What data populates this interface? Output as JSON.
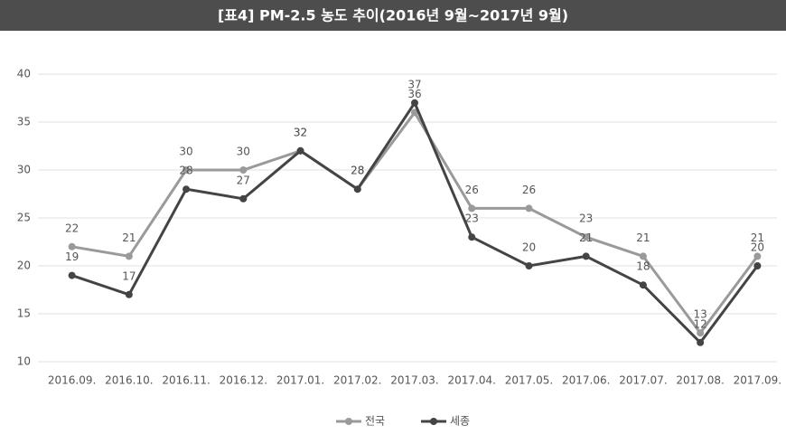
{
  "chart_data": {
    "type": "line",
    "title": "[표4] PM-2.5 농도 추이(2016년 9월~2017년 9월)",
    "categories": [
      "2016.09.",
      "2016.10.",
      "2016.11.",
      "2016.12.",
      "2017.01.",
      "2017.02.",
      "2017.03.",
      "2017.04.",
      "2017.05.",
      "2017.06.",
      "2017.07.",
      "2017.08.",
      "2017.09."
    ],
    "series": [
      {
        "name": "전국",
        "color": "#9a9a9a",
        "values": [
          22,
          21,
          30,
          30,
          32,
          28,
          36,
          26,
          26,
          23,
          21,
          13,
          21
        ]
      },
      {
        "name": "세종",
        "color": "#444444",
        "values": [
          19,
          17,
          28,
          27,
          32,
          28,
          37,
          23,
          20,
          21,
          18,
          12,
          20
        ]
      }
    ],
    "ylim": [
      10,
      40
    ],
    "yticks": [
      10,
      15,
      20,
      25,
      30,
      35,
      40
    ],
    "grid": true,
    "legend": "bottom"
  }
}
